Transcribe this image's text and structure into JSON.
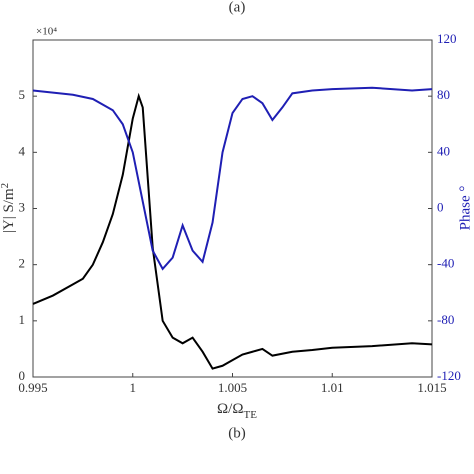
{
  "chart_data": {
    "type": "line",
    "panel_label_top": "(a)",
    "panel_label": "(b)",
    "xlabel": {
      "text": "Ω/Ω",
      "sub": "TE"
    },
    "ylabel": {
      "text": "|Y| S/m",
      "sup": "2"
    },
    "y_multiplier": "×10⁴",
    "y2label": "Phase °",
    "xlim": [
      0.995,
      1.015
    ],
    "xticks": [
      0.995,
      1,
      1.005,
      1.01,
      1.015
    ],
    "ylim": [
      0,
      6
    ],
    "yticks": [
      0,
      1,
      2,
      3,
      4,
      5
    ],
    "y2lim": [
      -120,
      120
    ],
    "y2ticks": [
      -120,
      -80,
      -40,
      0,
      40,
      80,
      120
    ],
    "series": [
      {
        "name": "|Y|",
        "color": "#000000",
        "x": [
          0.995,
          0.996,
          0.997,
          0.9975,
          0.998,
          0.9985,
          0.999,
          0.9995,
          1.0,
          1.0003,
          1.0005,
          1.001,
          1.0015,
          1.002,
          1.0025,
          1.003,
          1.0035,
          1.004,
          1.0045,
          1.005,
          1.0055,
          1.006,
          1.0065,
          1.007,
          1.008,
          1.009,
          1.01,
          1.012,
          1.014,
          1.015
        ],
        "values": [
          1.3,
          1.45,
          1.65,
          1.75,
          2.0,
          2.4,
          2.9,
          3.6,
          4.6,
          5.0,
          4.8,
          2.3,
          1.0,
          0.7,
          0.6,
          0.7,
          0.45,
          0.15,
          0.2,
          0.3,
          0.4,
          0.45,
          0.5,
          0.38,
          0.45,
          0.48,
          0.52,
          0.55,
          0.6,
          0.58
        ]
      },
      {
        "name": "Phase",
        "color": "#1f1fb4",
        "axis": "y2",
        "x": [
          0.995,
          0.997,
          0.998,
          0.999,
          0.9995,
          1.0,
          1.0005,
          1.001,
          1.0015,
          1.002,
          1.0025,
          1.003,
          1.0035,
          1.004,
          1.0045,
          1.005,
          1.0055,
          1.006,
          1.0065,
          1.007,
          1.0075,
          1.008,
          1.009,
          1.01,
          1.012,
          1.014,
          1.015
        ],
        "values": [
          84,
          81,
          78,
          70,
          60,
          40,
          5,
          -30,
          -43,
          -35,
          -12,
          -30,
          -38,
          -10,
          40,
          68,
          78,
          80,
          75,
          63,
          72,
          82,
          84,
          85,
          86,
          84,
          85
        ]
      }
    ]
  }
}
